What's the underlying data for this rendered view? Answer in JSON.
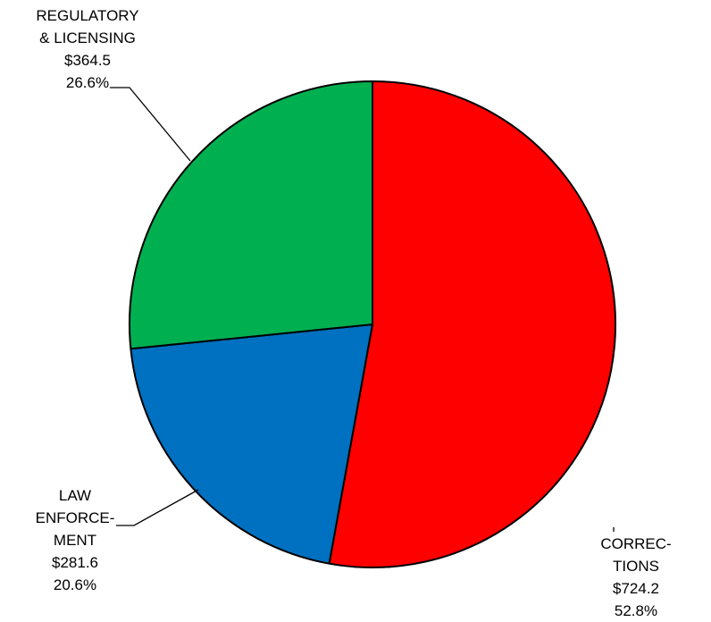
{
  "chart_data": {
    "type": "pie",
    "slices": [
      {
        "label_lines": [
          "CORREC-",
          "TIONS"
        ],
        "amount": "$724.2",
        "percent": "52.8%",
        "value": 724.2,
        "pct": 52.8,
        "color": "#ff0000"
      },
      {
        "label_lines": [
          "LAW",
          "ENFORCE-",
          "MENT"
        ],
        "amount": "$281.6",
        "percent": "20.6%",
        "value": 281.6,
        "pct": 20.6,
        "color": "#0070c0"
      },
      {
        "label_lines": [
          "REGULATORY",
          "& LICENSING"
        ],
        "amount": "$364.5",
        "percent": "26.6%",
        "value": 364.5,
        "pct": 26.6,
        "color": "#00b050"
      }
    ],
    "start_angle": "12 o'clock",
    "direction": "clockwise"
  }
}
